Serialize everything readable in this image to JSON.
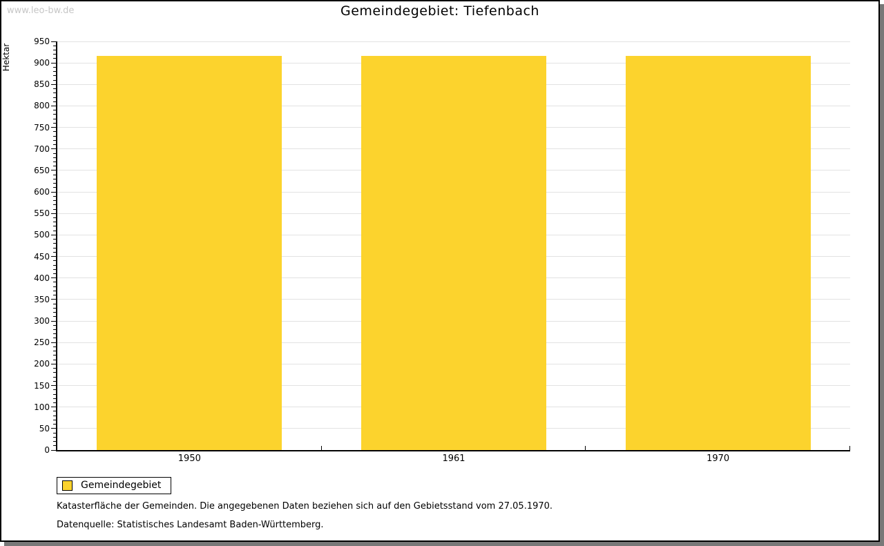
{
  "watermark": "www.leo-bw.de",
  "chart_data": {
    "type": "bar",
    "title": "Gemeindegebiet: Tiefenbach",
    "xlabel": "",
    "ylabel": "Hektar",
    "categories": [
      "1950",
      "1961",
      "1970"
    ],
    "series": [
      {
        "name": "Gemeindegebiet",
        "values": [
          916,
          916,
          916
        ]
      }
    ],
    "ylim": [
      0,
      950
    ],
    "ytick_major": 50,
    "ytick_minor": 10,
    "grid": "horizontal",
    "legend_position": "bottom-left",
    "bar_color": "#fcd32d",
    "bar_width_fraction": 0.7
  },
  "legend": {
    "items": [
      {
        "label": "Gemeindegebiet",
        "color": "#fcd32d"
      }
    ]
  },
  "footnotes": [
    "Katasterfläche der Gemeinden. Die angegebenen Daten beziehen sich auf den Gebietsstand vom 27.05.1970.",
    "Datenquelle: Statistisches Landesamt Baden-Württemberg."
  ]
}
